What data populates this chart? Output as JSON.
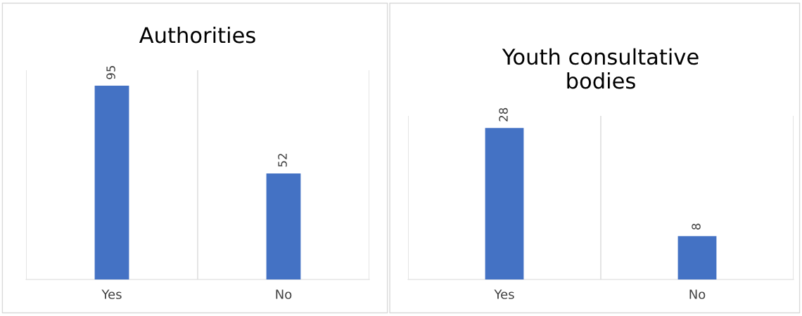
{
  "chart_data": [
    {
      "type": "bar",
      "title": "Authorities",
      "categories": [
        "Yes",
        "No"
      ],
      "values": [
        95,
        52
      ],
      "color": "#4472c4",
      "data_labels": true,
      "grid": "x",
      "tick_labels": "x"
    },
    {
      "type": "bar",
      "title": "Youth consultative\nbodies",
      "categories": [
        "Yes",
        "No"
      ],
      "values": [
        28,
        8
      ],
      "color": "#4472c4",
      "data_labels": true,
      "grid": "x",
      "tick_labels": "x"
    }
  ]
}
